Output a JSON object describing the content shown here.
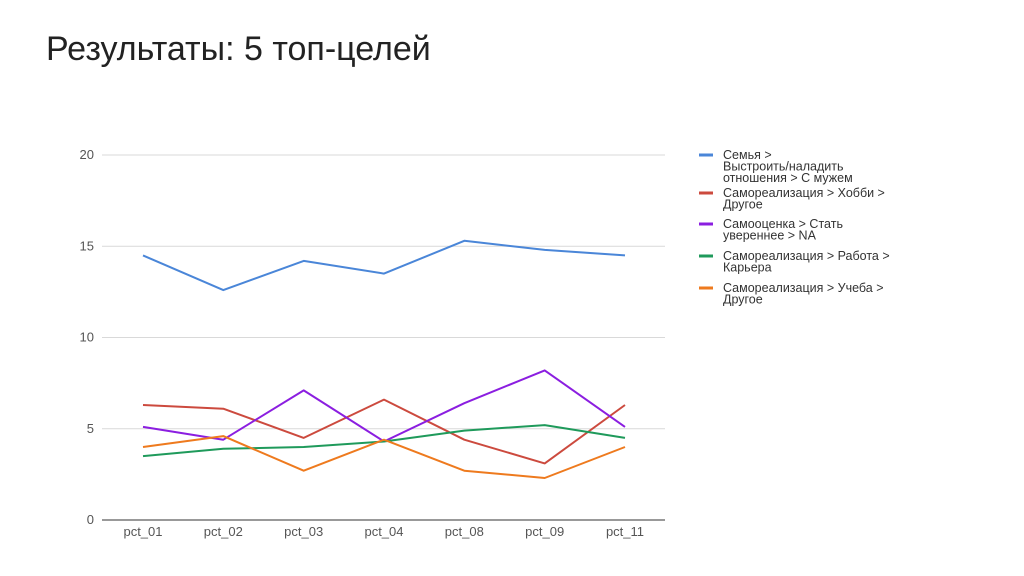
{
  "slide": {
    "title": "Результаты: 5 топ-целей"
  },
  "chart_data": {
    "type": "line",
    "title": "",
    "xlabel": "",
    "ylabel": "",
    "categories": [
      "pct_01",
      "pct_02",
      "pct_03",
      "pct_04",
      "pct_08",
      "pct_09",
      "pct_11"
    ],
    "ylim": [
      0,
      20
    ],
    "yticks": [
      0,
      5,
      10,
      15,
      20
    ],
    "grid": true,
    "legend_position": "right",
    "series": [
      {
        "name": "Семья > Выстроить/наладить отношения > С мужем",
        "name_lines": [
          "Семья >",
          "Выстроить/наладить",
          "отношения > С мужем"
        ],
        "color": "#4a86d8",
        "values": [
          14.5,
          12.6,
          14.2,
          13.5,
          15.3,
          14.8,
          14.5
        ]
      },
      {
        "name": "Самореализация > Хобби > Другое",
        "name_lines": [
          "Самореализация > Хобби >",
          "Другое"
        ],
        "color": "#cc4a3e",
        "values": [
          6.3,
          6.1,
          4.5,
          6.6,
          4.4,
          3.1,
          6.3
        ]
      },
      {
        "name": "Самооценка > Стать увереннее > NA",
        "name_lines": [
          "Самооценка > Стать",
          "увереннее > NA"
        ],
        "color": "#8b1ee0",
        "values": [
          5.1,
          4.4,
          7.1,
          4.3,
          6.4,
          8.2,
          5.1
        ]
      },
      {
        "name": "Самореализация > Работа > Карьера",
        "name_lines": [
          "Самореализация > Работа >",
          "Карьера"
        ],
        "color": "#1f9a5b",
        "values": [
          3.5,
          3.9,
          4.0,
          4.3,
          4.9,
          5.2,
          4.5
        ]
      },
      {
        "name": "Самореализация > Учеба > Другое",
        "name_lines": [
          "Самореализация > Учеба >",
          "Другое"
        ],
        "color": "#ee7a1e",
        "values": [
          4.0,
          4.6,
          2.7,
          4.4,
          2.7,
          2.3,
          4.0
        ]
      }
    ]
  }
}
